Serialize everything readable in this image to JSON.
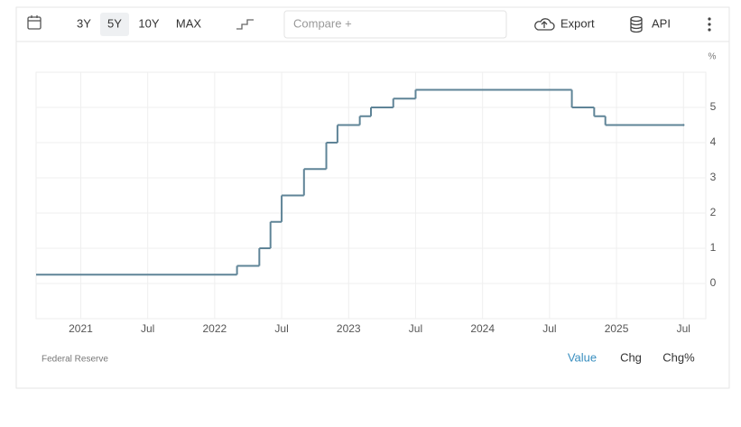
{
  "toolbar": {
    "ranges": [
      "3Y",
      "5Y",
      "10Y",
      "MAX"
    ],
    "compare": "Compare +",
    "export": "Export",
    "api": "API"
  },
  "chart_data": {
    "type": "step",
    "x": [
      "2020-09",
      "2022-03",
      "2022-05",
      "2022-06",
      "2022-07",
      "2022-09",
      "2022-11",
      "2022-12",
      "2023-02",
      "2023-03",
      "2023-05",
      "2023-07",
      "2024-09",
      "2024-11",
      "2024-12",
      "2025-07"
    ],
    "series": [
      {
        "color": "#5f8497",
        "values": [
          0.25,
          0.5,
          1,
          1.75,
          2.5,
          3.25,
          4,
          4.5,
          4.75,
          5,
          5.25,
          5.5,
          5,
          4.75,
          4.5,
          4.5
        ]
      }
    ],
    "xlim": [
      "2020-09",
      "2025-09"
    ],
    "xticks": [
      {
        "value": "2021-01",
        "label": "2021"
      },
      {
        "value": "2021-07",
        "label": "Jul"
      },
      {
        "value": "2022-01",
        "label": "2022"
      },
      {
        "value": "2022-07",
        "label": "Jul"
      },
      {
        "value": "2023-01",
        "label": "2023"
      },
      {
        "value": "2023-07",
        "label": "Jul"
      },
      {
        "value": "2024-01",
        "label": "2024"
      },
      {
        "value": "2024-07",
        "label": "Jul"
      },
      {
        "value": "2025-01",
        "label": "2025"
      },
      {
        "value": "2025-07",
        "label": "Jul"
      }
    ],
    "ylim": [
      -1,
      6
    ],
    "yticks": [
      0,
      1,
      2,
      3,
      4,
      5
    ],
    "y_unit": "%",
    "grid": true
  },
  "footer": {
    "source": "Federal Reserve",
    "tabs": [
      "Value",
      "Chg",
      "Chg%"
    ]
  }
}
